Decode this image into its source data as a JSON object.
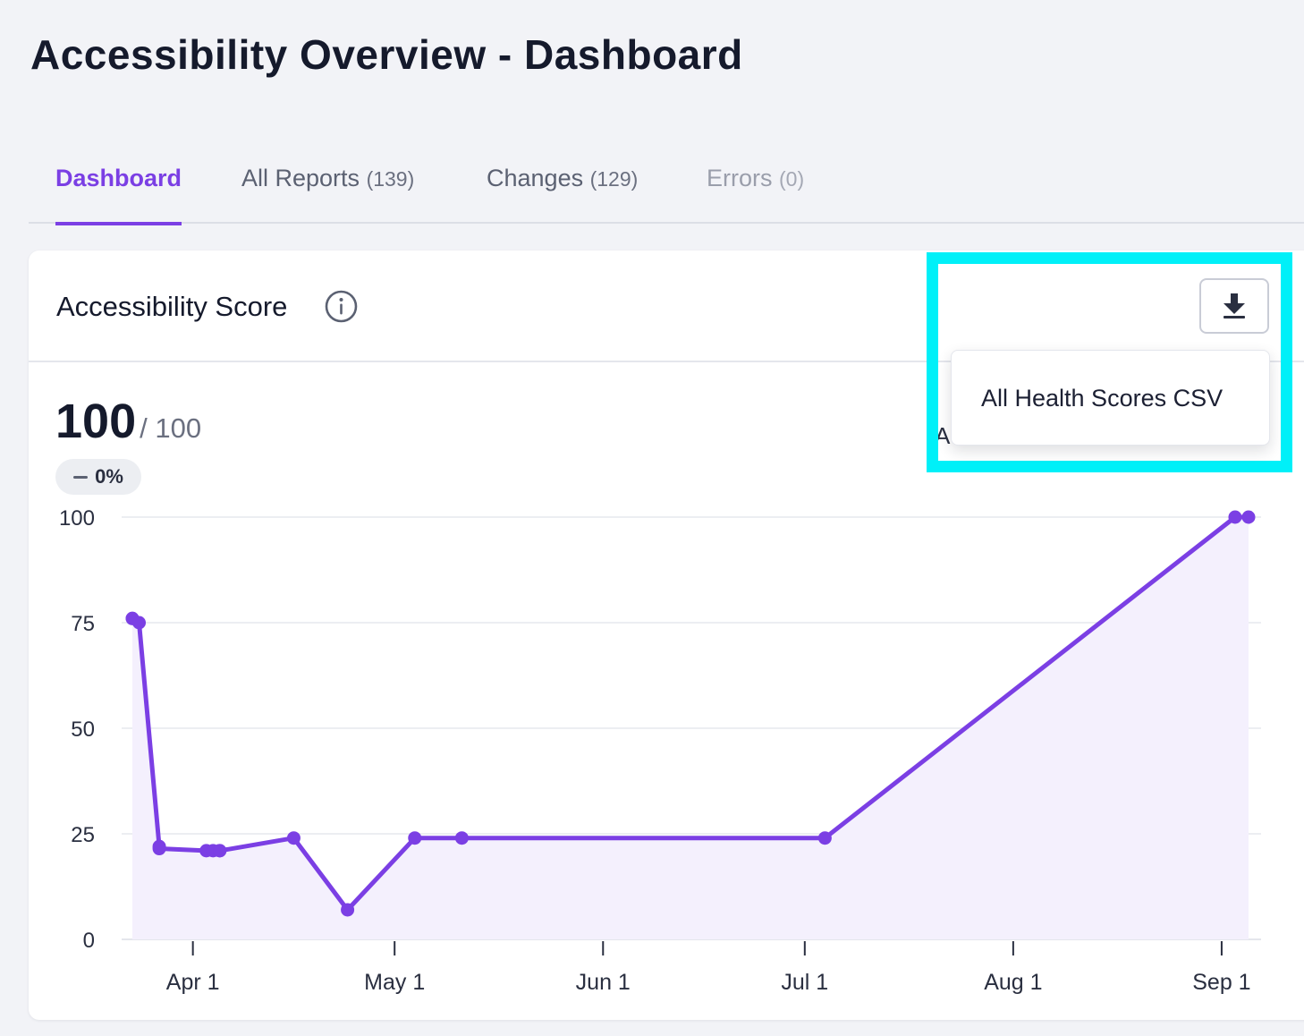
{
  "page": {
    "title": "Accessibility Overview - Dashboard"
  },
  "tabs": [
    {
      "label": "Dashboard",
      "count": ""
    },
    {
      "label": "All Reports",
      "count": "(139)"
    },
    {
      "label": "Changes",
      "count": "(129)"
    },
    {
      "label": "Errors",
      "count": "(0)"
    }
  ],
  "card": {
    "title": "Accessibility Score",
    "score": "100",
    "score_max": "/ 100",
    "delta": "0%",
    "legend_partial": "A"
  },
  "download_menu": {
    "items": [
      "All Health Scores CSV"
    ]
  },
  "icons": {
    "info": "info-icon",
    "download": "download-icon"
  },
  "colors": {
    "accent": "#7b3fe4",
    "highlight": "#00f0f8"
  },
  "chart_data": {
    "type": "area",
    "title": "",
    "xlabel": "",
    "ylabel": "",
    "ylim": [
      0,
      100
    ],
    "yticks": [
      "0",
      "25",
      "50",
      "75",
      "100"
    ],
    "xticks": [
      {
        "label": "Apr 1",
        "date": "2024-04-01"
      },
      {
        "label": "May 1",
        "date": "2024-05-01"
      },
      {
        "label": "Jun 1",
        "date": "2024-06-01"
      },
      {
        "label": "Jul 1",
        "date": "2024-07-01"
      },
      {
        "label": "Aug 1",
        "date": "2024-08-01"
      },
      {
        "label": "Sep 1",
        "date": "2024-09-01"
      }
    ],
    "grid": true,
    "series": [
      {
        "points": [
          {
            "x": "2024-03-23",
            "y": 76
          },
          {
            "x": "2024-03-23",
            "y": 76
          },
          {
            "x": "2024-03-24",
            "y": 75
          },
          {
            "x": "2024-03-27",
            "y": 22
          },
          {
            "x": "2024-03-27",
            "y": 21.5
          },
          {
            "x": "2024-04-03",
            "y": 21
          },
          {
            "x": "2024-04-04",
            "y": 21
          },
          {
            "x": "2024-04-05",
            "y": 21
          },
          {
            "x": "2024-04-05",
            "y": 21
          },
          {
            "x": "2024-04-16",
            "y": 24
          },
          {
            "x": "2024-04-24",
            "y": 7
          },
          {
            "x": "2024-05-04",
            "y": 24
          },
          {
            "x": "2024-05-11",
            "y": 24
          },
          {
            "x": "2024-07-04",
            "y": 24
          },
          {
            "x": "2024-09-03",
            "y": 100
          },
          {
            "x": "2024-09-05",
            "y": 100
          }
        ]
      }
    ]
  }
}
